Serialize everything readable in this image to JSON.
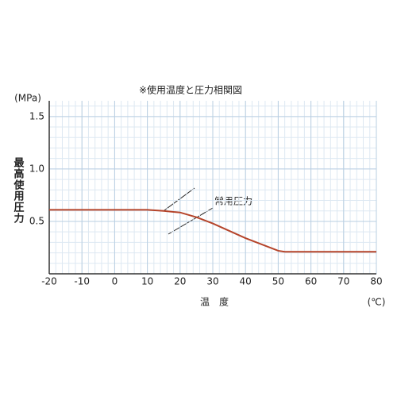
{
  "chart_data": {
    "type": "line",
    "title": "※使用温度と圧力相関図",
    "y_label": "最高使用圧力",
    "y_unit": "(MPa)",
    "x_label": "温　度",
    "x_unit": "(℃)",
    "annotation": "常用圧力",
    "x": [
      -20,
      10,
      15,
      18,
      20,
      25,
      30,
      40,
      50,
      52,
      80
    ],
    "series": [
      {
        "name": "常用圧力",
        "color": "#b5442a",
        "values": [
          0.61,
          0.61,
          0.6,
          0.59,
          0.585,
          0.54,
          0.48,
          0.34,
          0.22,
          0.21,
          0.21
        ]
      }
    ],
    "xlim": [
      -20,
      80
    ],
    "xticks": [
      -20,
      -10,
      0,
      10,
      20,
      30,
      40,
      50,
      60,
      70,
      80
    ],
    "ylim": [
      0,
      1.65
    ],
    "yticks": [
      0.5,
      {
        "value": 1,
        "label": "1.0"
      },
      1.5
    ],
    "grid": true
  }
}
